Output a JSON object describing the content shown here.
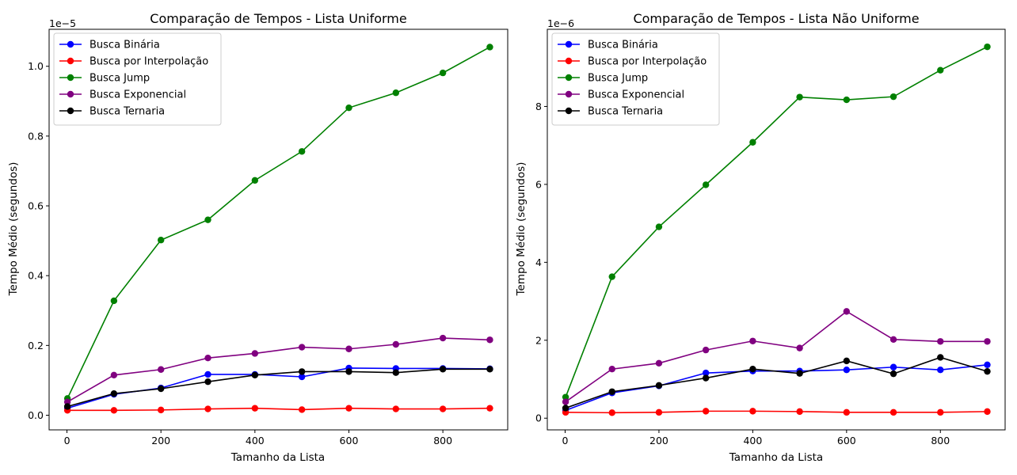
{
  "chart_data": [
    {
      "type": "line",
      "title": "Comparação de Tempos - Lista Uniforme",
      "xlabel": "Tamanho da Lista",
      "ylabel": "Tempo Médio (segundos)",
      "y_offset_label": "1e−5",
      "y_multiplier": 1e-05,
      "xlim": [
        -38,
        938
      ],
      "ylim": [
        -0.042,
        1.106
      ],
      "xticks": [
        0,
        200,
        400,
        600,
        800
      ],
      "xtick_labels": [
        "0",
        "200",
        "400",
        "600",
        "800"
      ],
      "yticks": [
        0.0,
        0.2,
        0.4,
        0.6,
        0.8,
        1.0
      ],
      "ytick_labels": [
        "0.0",
        "0.2",
        "0.4",
        "0.6",
        "0.8",
        "1.0"
      ],
      "legend_position": "top-left",
      "x": [
        1,
        100,
        200,
        300,
        400,
        500,
        600,
        700,
        800,
        900
      ],
      "series": [
        {
          "name": "Busca Binária",
          "color": "#0000ff",
          "values": [
            0.02,
            0.06,
            0.078,
            0.117,
            0.117,
            0.11,
            0.135,
            0.134,
            0.134,
            0.133
          ]
        },
        {
          "name": "Busca por Interpolação",
          "color": "#ff0000",
          "values": [
            0.014,
            0.014,
            0.015,
            0.018,
            0.02,
            0.016,
            0.02,
            0.018,
            0.018,
            0.02
          ]
        },
        {
          "name": "Busca Jump",
          "color": "#008000",
          "values": [
            0.048,
            0.328,
            0.502,
            0.56,
            0.673,
            0.756,
            0.881,
            0.924,
            0.981,
            1.055
          ]
        },
        {
          "name": "Busca Exponencial",
          "color": "#800080",
          "values": [
            0.038,
            0.115,
            0.131,
            0.164,
            0.177,
            0.195,
            0.19,
            0.203,
            0.221,
            0.216
          ]
        },
        {
          "name": "Busca Ternaria",
          "color": "#000000",
          "values": [
            0.025,
            0.062,
            0.076,
            0.096,
            0.115,
            0.125,
            0.125,
            0.122,
            0.132,
            0.132
          ]
        }
      ]
    },
    {
      "type": "line",
      "title": "Comparação de Tempos - Lista Não Uniforme",
      "xlabel": "Tamanho da Lista",
      "ylabel": "Tempo Médio (segundos)",
      "y_offset_label": "1e−6",
      "y_multiplier": 1e-06,
      "xlim": [
        -38,
        938
      ],
      "ylim": [
        -0.3,
        9.98
      ],
      "xticks": [
        0,
        200,
        400,
        600,
        800
      ],
      "xtick_labels": [
        "0",
        "200",
        "400",
        "600",
        "800"
      ],
      "yticks": [
        0,
        2,
        4,
        6,
        8
      ],
      "ytick_labels": [
        "0",
        "2",
        "4",
        "6",
        "8"
      ],
      "legend_position": "top-left",
      "x": [
        1,
        100,
        200,
        300,
        400,
        500,
        600,
        700,
        800,
        900
      ],
      "series": [
        {
          "name": "Busca Binária",
          "color": "#0000ff",
          "values": [
            0.2,
            0.65,
            0.83,
            1.16,
            1.21,
            1.21,
            1.24,
            1.31,
            1.24,
            1.37
          ]
        },
        {
          "name": "Busca por Interpolação",
          "color": "#ff0000",
          "values": [
            0.15,
            0.14,
            0.15,
            0.18,
            0.18,
            0.17,
            0.15,
            0.15,
            0.15,
            0.17
          ]
        },
        {
          "name": "Busca Jump",
          "color": "#008000",
          "values": [
            0.54,
            3.63,
            4.91,
            5.99,
            7.08,
            8.24,
            8.17,
            8.25,
            8.93,
            9.53
          ]
        },
        {
          "name": "Busca Exponencial",
          "color": "#800080",
          "values": [
            0.42,
            1.26,
            1.41,
            1.75,
            1.98,
            1.8,
            2.74,
            2.02,
            1.97,
            1.97
          ]
        },
        {
          "name": "Busca Ternaria",
          "color": "#000000",
          "values": [
            0.26,
            0.68,
            0.84,
            1.03,
            1.26,
            1.15,
            1.47,
            1.14,
            1.56,
            1.2
          ]
        }
      ]
    }
  ]
}
